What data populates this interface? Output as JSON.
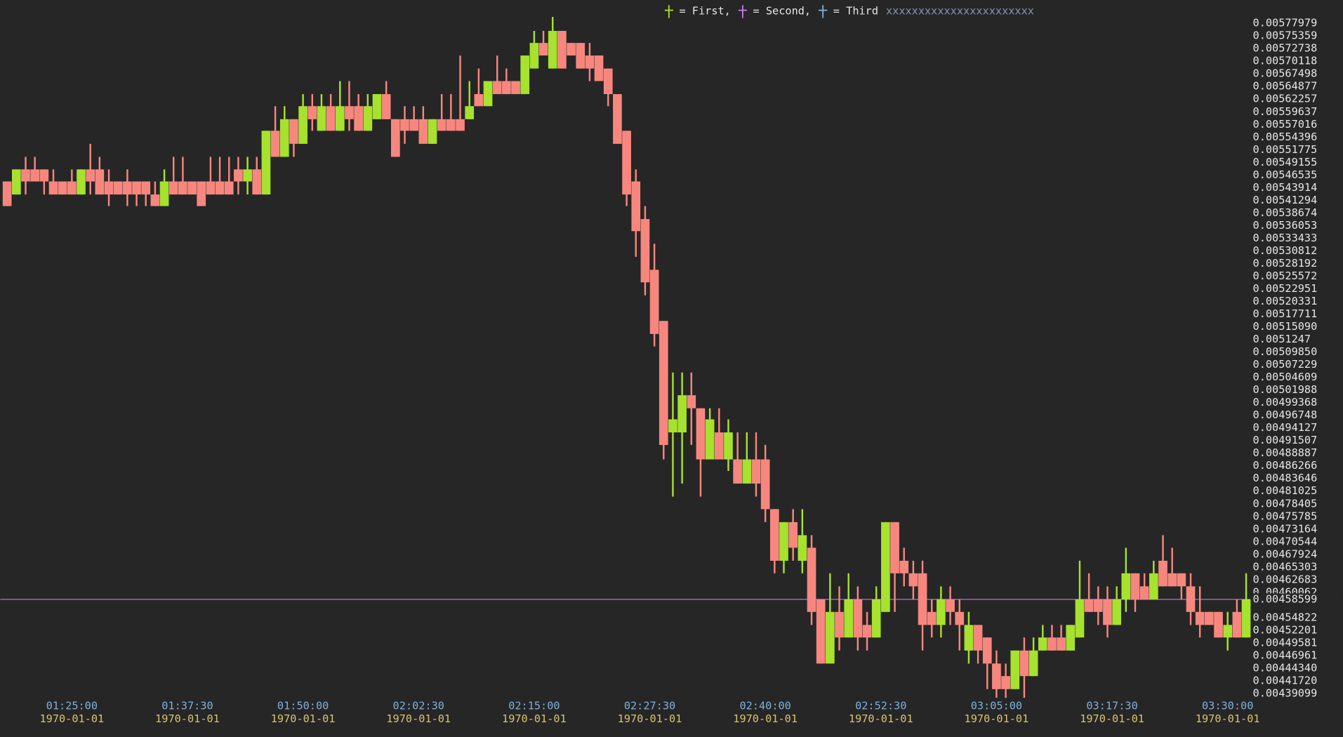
{
  "chart_data": {
    "type": "candlestick",
    "legend": [
      {
        "name": "= First,",
        "color": "#a6e22e"
      },
      {
        "name": "= Second,",
        "color": "#c27ce0"
      },
      {
        "name": "= Third",
        "color": "#7fb0dc"
      }
    ],
    "legend_note": "xxxxxxxxxxxxxxxxxxxxxxx",
    "up_color": "#a6e22e",
    "down_color": "#f7877e",
    "x": [
      "01:18:00",
      "01:19:00",
      "01:20:00",
      "01:21:00",
      "01:22:00",
      "01:23:00",
      "01:24:00",
      "01:25:00",
      "01:26:00",
      "01:27:00",
      "01:28:00",
      "01:29:00",
      "01:30:00",
      "01:31:00",
      "01:32:00",
      "01:33:00",
      "01:34:00",
      "01:35:00",
      "01:36:00",
      "01:37:00",
      "01:38:00",
      "01:39:00",
      "01:40:00",
      "01:41:00",
      "01:42:00",
      "01:43:00",
      "01:44:00",
      "01:45:00",
      "01:46:00",
      "01:47:00",
      "01:48:00",
      "01:49:00",
      "01:50:00",
      "01:51:00",
      "01:52:00",
      "01:53:00",
      "01:54:00",
      "01:55:00",
      "01:56:00",
      "01:57:00",
      "01:58:00",
      "01:59:00",
      "02:00:00",
      "02:01:00",
      "02:02:00",
      "02:03:00",
      "02:04:00",
      "02:05:00",
      "02:06:00",
      "02:07:00",
      "02:08:00",
      "02:09:00",
      "02:10:00",
      "02:11:00",
      "02:12:00",
      "02:13:00",
      "02:14:00",
      "02:15:00",
      "02:16:00",
      "02:17:00",
      "02:18:00",
      "02:19:00",
      "02:20:00",
      "02:21:00",
      "02:22:00",
      "02:23:00",
      "02:24:00",
      "02:25:00",
      "02:26:00",
      "02:27:00",
      "02:28:00",
      "02:29:00",
      "02:30:00",
      "02:31:00",
      "02:32:00",
      "02:33:00",
      "02:34:00",
      "02:35:00",
      "02:36:00",
      "02:37:00",
      "02:38:00",
      "02:39:00",
      "02:40:00",
      "02:41:00",
      "02:42:00",
      "02:43:00",
      "02:44:00",
      "02:45:00",
      "02:46:00",
      "02:47:00",
      "02:48:00",
      "02:49:00",
      "02:50:00",
      "02:51:00",
      "02:52:00",
      "02:53:00",
      "02:54:00",
      "02:55:00",
      "02:56:00",
      "02:57:00",
      "02:58:00",
      "02:59:00",
      "03:00:00",
      "03:01:00",
      "03:02:00",
      "03:03:00",
      "03:04:00",
      "03:05:00",
      "03:06:00",
      "03:07:00",
      "03:08:00",
      "03:09:00",
      "03:10:00",
      "03:11:00",
      "03:12:00",
      "03:13:00",
      "03:14:00",
      "03:15:00",
      "03:16:00",
      "03:17:00",
      "03:18:00",
      "03:19:00",
      "03:20:00",
      "03:21:00",
      "03:22:00",
      "03:23:00",
      "03:24:00",
      "03:25:00",
      "03:26:00",
      "03:27:00",
      "03:28:00",
      "03:29:00",
      "03:30:00",
      "03:31:00",
      "03:32:00"
    ],
    "open": [
      0.005452,
      0.005425,
      0.005477,
      0.005477,
      0.005477,
      0.005452,
      0.005452,
      0.005452,
      0.005425,
      0.005477,
      0.005477,
      0.005452,
      0.005452,
      0.005452,
      0.005452,
      0.005452,
      0.005425,
      0.005401,
      0.005452,
      0.005452,
      0.005452,
      0.005452,
      0.005452,
      0.005452,
      0.005452,
      0.005477,
      0.005452,
      0.005477,
      0.005425,
      0.005557,
      0.005503,
      0.005581,
      0.00553,
      0.005608,
      0.005557,
      0.005608,
      0.005557,
      0.005608,
      0.005608,
      0.005557,
      0.005581,
      0.005633,
      0.005581,
      0.005581,
      0.005581,
      0.005581,
      0.00553,
      0.005581,
      0.005581,
      0.005581,
      0.005581,
      0.005633,
      0.005608,
      0.00566,
      0.00566,
      0.00566,
      0.005633,
      0.005686,
      0.005739,
      0.005686,
      0.005764,
      0.005739,
      0.005739,
      0.005713,
      0.005713,
      0.005686,
      0.005633,
      0.005557,
      0.005452,
      0.005374,
      0.005269,
      0.005163,
      0.004932,
      0.004932,
      0.005009,
      0.004982,
      0.004876,
      0.004932,
      0.004876,
      0.004876,
      0.004826,
      0.004876,
      0.004876,
      0.004773,
      0.004666,
      0.004746,
      0.004666,
      0.004693,
      0.004586,
      0.004453,
      0.00456,
      0.004507,
      0.004586,
      0.004533,
      0.004507,
      0.00456,
      0.004746,
      0.004666,
      0.00464,
      0.00464,
      0.00456,
      0.004533,
      0.004586,
      0.00456,
      0.00448,
      0.004533,
      0.004507,
      0.004453,
      0.004427,
      0.0044,
      0.00448,
      0.004427,
      0.00448,
      0.004507,
      0.004507,
      0.00448,
      0.004507,
      0.004586,
      0.004586,
      0.004586,
      0.004533,
      0.004586,
      0.00464,
      0.004613,
      0.004586,
      0.004666,
      0.00464,
      0.00464,
      0.004613,
      0.00456,
      0.00456,
      0.00456,
      0.004507,
      0.00456,
      0.004507
    ],
    "high": [
      0.005452,
      0.005477,
      0.005503,
      0.005503,
      0.005477,
      0.005477,
      0.005452,
      0.005477,
      0.005477,
      0.00553,
      0.005503,
      0.005477,
      0.005452,
      0.005477,
      0.005452,
      0.005452,
      0.005452,
      0.005477,
      0.005503,
      0.005503,
      0.005452,
      0.005452,
      0.005503,
      0.005503,
      0.005503,
      0.005503,
      0.005503,
      0.005503,
      0.005557,
      0.005608,
      0.005608,
      0.005581,
      0.005633,
      0.005633,
      0.005633,
      0.005633,
      0.00566,
      0.00566,
      0.005633,
      0.005633,
      0.005633,
      0.00566,
      0.005581,
      0.005608,
      0.005608,
      0.005608,
      0.005581,
      0.005633,
      0.005633,
      0.005713,
      0.00566,
      0.005686,
      0.00566,
      0.005713,
      0.005686,
      0.00566,
      0.005713,
      0.005764,
      0.005764,
      0.005793,
      0.005764,
      0.005739,
      0.005739,
      0.005739,
      0.005713,
      0.005686,
      0.005633,
      0.005557,
      0.005477,
      0.005401,
      0.005323,
      0.005163,
      0.005056,
      0.005056,
      0.005056,
      0.004982,
      0.004982,
      0.004982,
      0.004959,
      0.004932,
      0.004932,
      0.004932,
      0.004906,
      0.004773,
      0.004746,
      0.004773,
      0.004773,
      0.004719,
      0.004586,
      0.00464,
      0.004613,
      0.00464,
      0.004613,
      0.00456,
      0.004613,
      0.004746,
      0.004746,
      0.004693,
      0.004666,
      0.004666,
      0.004586,
      0.004613,
      0.004613,
      0.004586,
      0.00456,
      0.004533,
      0.004507,
      0.00448,
      0.004453,
      0.00448,
      0.004507,
      0.004507,
      0.004533,
      0.004533,
      0.004533,
      0.004533,
      0.004666,
      0.00464,
      0.004613,
      0.004613,
      0.004613,
      0.004693,
      0.00464,
      0.00464,
      0.004666,
      0.004719,
      0.004693,
      0.00464,
      0.00464,
      0.004613,
      0.00456,
      0.00456,
      0.00456,
      0.004586,
      0.00464
    ],
    "low": [
      0.005401,
      0.005425,
      0.005425,
      0.005452,
      0.005425,
      0.005425,
      0.005425,
      0.005425,
      0.005425,
      0.005425,
      0.005425,
      0.005401,
      0.005425,
      0.005401,
      0.005401,
      0.005401,
      0.005401,
      0.005401,
      0.005425,
      0.005425,
      0.005425,
      0.005401,
      0.005425,
      0.005425,
      0.005425,
      0.005425,
      0.005425,
      0.005425,
      0.005425,
      0.005503,
      0.005503,
      0.005503,
      0.00553,
      0.005557,
      0.005557,
      0.005557,
      0.005557,
      0.005557,
      0.005557,
      0.005557,
      0.005581,
      0.005581,
      0.005503,
      0.00553,
      0.005557,
      0.00553,
      0.00553,
      0.005557,
      0.005557,
      0.005557,
      0.005581,
      0.005608,
      0.005608,
      0.005633,
      0.005633,
      0.005633,
      0.005633,
      0.005686,
      0.005713,
      0.005686,
      0.005686,
      0.005713,
      0.005686,
      0.00566,
      0.00566,
      0.005608,
      0.00553,
      0.005401,
      0.005296,
      0.005216,
      0.00511,
      0.004876,
      0.004799,
      0.004826,
      0.004906,
      0.004799,
      0.004876,
      0.004876,
      0.004852,
      0.004826,
      0.004826,
      0.004799,
      0.004746,
      0.00464,
      0.00464,
      0.004666,
      0.00464,
      0.004533,
      0.004453,
      0.004453,
      0.00448,
      0.004507,
      0.00448,
      0.00448,
      0.004507,
      0.00456,
      0.00456,
      0.004613,
      0.004586,
      0.00448,
      0.004507,
      0.004507,
      0.004533,
      0.00448,
      0.004453,
      0.004453,
      0.0044,
      0.004382,
      0.004382,
      0.0044,
      0.004382,
      0.004427,
      0.00448,
      0.00448,
      0.00448,
      0.00448,
      0.004507,
      0.00456,
      0.004533,
      0.004507,
      0.004533,
      0.00456,
      0.00456,
      0.004586,
      0.004586,
      0.004613,
      0.004613,
      0.004586,
      0.004533,
      0.004507,
      0.004533,
      0.004507,
      0.00448,
      0.004507,
      0.004507
    ],
    "close": [
      0.005401,
      0.005477,
      0.005452,
      0.005452,
      0.005452,
      0.005425,
      0.005425,
      0.005425,
      0.005477,
      0.005452,
      0.005425,
      0.005425,
      0.005425,
      0.005425,
      0.005425,
      0.005425,
      0.005401,
      0.005452,
      0.005425,
      0.005425,
      0.005425,
      0.005401,
      0.005425,
      0.005425,
      0.005425,
      0.005452,
      0.005477,
      0.005425,
      0.005557,
      0.005503,
      0.005581,
      0.00553,
      0.005608,
      0.005581,
      0.005608,
      0.005557,
      0.005608,
      0.005581,
      0.005557,
      0.005608,
      0.005633,
      0.005581,
      0.005503,
      0.005557,
      0.005557,
      0.00553,
      0.005581,
      0.005557,
      0.005557,
      0.005557,
      0.005608,
      0.005608,
      0.00566,
      0.005633,
      0.005633,
      0.005633,
      0.005713,
      0.005739,
      0.005713,
      0.005764,
      0.005686,
      0.005713,
      0.005686,
      0.005686,
      0.00566,
      0.005633,
      0.00553,
      0.005425,
      0.005349,
      0.005243,
      0.005136,
      0.004906,
      0.004959,
      0.005009,
      0.004982,
      0.004876,
      0.004959,
      0.004876,
      0.004932,
      0.004826,
      0.004876,
      0.004826,
      0.004773,
      0.004666,
      0.004746,
      0.004693,
      0.004719,
      0.00456,
      0.004453,
      0.00456,
      0.004507,
      0.004586,
      0.004507,
      0.004507,
      0.004586,
      0.004746,
      0.00464,
      0.00464,
      0.004613,
      0.004533,
      0.004533,
      0.004586,
      0.00456,
      0.004533,
      0.004533,
      0.00448,
      0.004453,
      0.0044,
      0.0044,
      0.00448,
      0.004427,
      0.00448,
      0.004507,
      0.00448,
      0.00448,
      0.004533,
      0.004586,
      0.00456,
      0.00456,
      0.004533,
      0.004586,
      0.00464,
      0.004586,
      0.004586,
      0.00464,
      0.004613,
      0.004613,
      0.004613,
      0.00456,
      0.004533,
      0.004533,
      0.004507,
      0.004533,
      0.004507,
      0.004586
    ],
    "last_price": 0.00458599,
    "last_price_color": "#a6e22e",
    "last_price_line_color": "#c27ce0",
    "ylim": [
      0.0043824,
      0.005828
    ],
    "yticks": [
      0.00577979,
      0.00575359,
      0.00572738,
      0.00570118,
      0.00567498,
      0.00564877,
      0.00562257,
      0.00559637,
      0.00557016,
      0.00554396,
      0.00551775,
      0.00549155,
      0.00546535,
      0.00543914,
      0.00541294,
      0.00538674,
      0.00536053,
      0.00533433,
      0.00530812,
      0.00528192,
      0.00525572,
      0.00522951,
      0.00520331,
      0.00517711,
      {
        "value": 0.0051509,
        "label": "0.00515090"
      },
      0.0051247,
      {
        "value": 0.0050985,
        "label": "0.00509850"
      },
      0.00507229,
      0.00504609,
      0.00501988,
      0.00499368,
      0.00496748,
      0.00494127,
      0.00491507,
      0.00488887,
      0.00486266,
      0.00483646,
      0.00481025,
      0.00478405,
      0.00475785,
      0.00473164,
      0.00470544,
      0.00467924,
      0.00465303,
      0.00462683,
      0.00460062,
      0.00454822,
      0.00452201,
      0.00449581,
      0.00446961,
      {
        "value": 0.0044434,
        "label": "0.00444340"
      },
      {
        "value": 0.0044172,
        "label": "0.00441720"
      },
      0.00439099
    ],
    "xticks": [
      "01:25:00",
      "01:37:30",
      "01:50:00",
      "02:02:30",
      "02:15:00",
      "02:27:30",
      "02:40:00",
      "02:52:30",
      "03:05:00",
      "03:17:30",
      "03:30:00"
    ],
    "xtick_dates": [
      "1970-01-01",
      "1970-01-01",
      "1970-01-01",
      "1970-01-01",
      "1970-01-01",
      "1970-01-01",
      "1970-01-01",
      "1970-01-01",
      "1970-01-01",
      "1970-01-01",
      "1970-01-01"
    ],
    "grid": false
  }
}
